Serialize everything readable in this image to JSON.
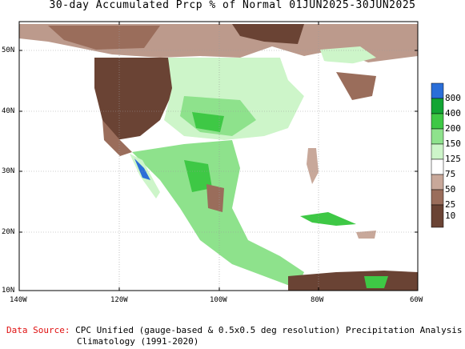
{
  "title": "30-day Accumulated Prcp % of Normal 01JUN2025-30JUN2025",
  "axes": {
    "y_ticks": [
      "50N",
      "40N",
      "30N",
      "20N",
      "10N"
    ],
    "x_ticks": [
      "140W",
      "120W",
      "100W",
      "80W",
      "60W"
    ]
  },
  "legend": {
    "levels": [
      "800",
      "400",
      "200",
      "150",
      "125",
      "75",
      "50",
      "25",
      "10"
    ],
    "colors": [
      "#2a6ed8",
      "#12a534",
      "#3ec845",
      "#8ee28c",
      "#cdf5c9",
      "#ffffff",
      "#c8a89a",
      "#9a6d5b",
      "#6a4334"
    ]
  },
  "footer": {
    "source_label": "Data Source:",
    "line1": "CPC Unified (gauge-based & 0.5x0.5 deg resolution) Precipitation Analysis",
    "line2": "Climatology (1991-2020)"
  }
}
